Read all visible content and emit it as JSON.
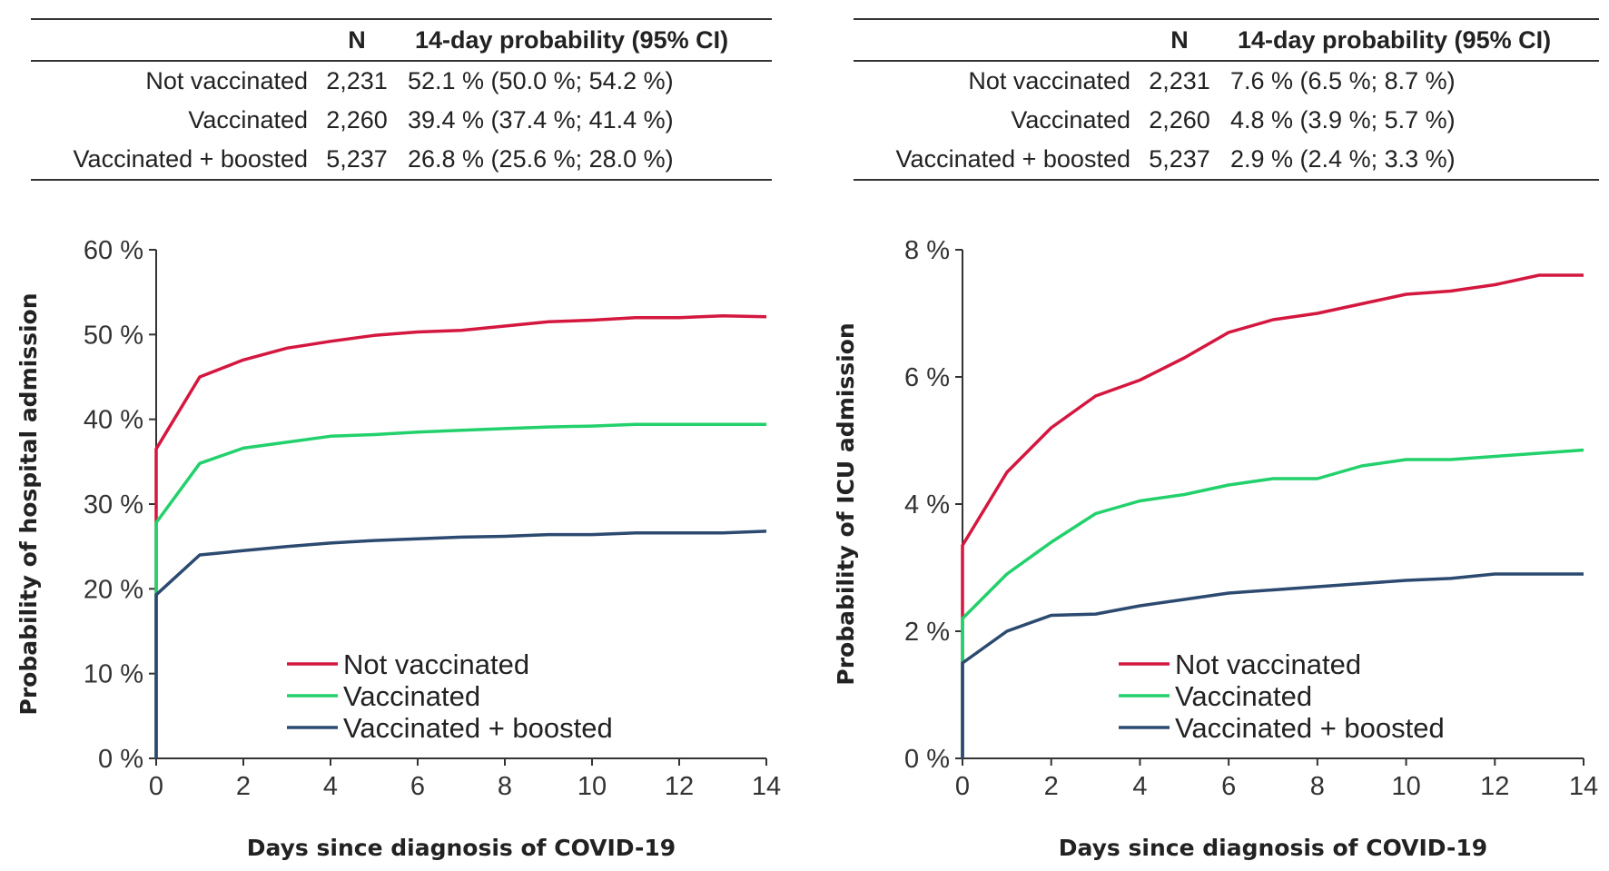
{
  "tables": [
    {
      "headers": [
        "",
        "N",
        "14-day probability (95% CI)"
      ],
      "rows": [
        [
          "Not vaccinated",
          "2,231",
          "52.1 % (50.0 %; 54.2 %)"
        ],
        [
          "Vaccinated",
          "2,260",
          "39.4 % (37.4 %; 41.4 %)"
        ],
        [
          "Vaccinated + boosted",
          "5,237",
          "26.8 % (25.6 %; 28.0 %)"
        ]
      ]
    },
    {
      "headers": [
        "",
        "N",
        "14-day probability (95% CI)"
      ],
      "rows": [
        [
          "Not vaccinated",
          "2,231",
          "7.6 % (6.5 %; 8.7 %)"
        ],
        [
          "Vaccinated",
          "2,260",
          "4.8 % (3.9 %; 5.7 %)"
        ],
        [
          "Vaccinated + boosted",
          "5,237",
          "2.9 % (2.4 %; 3.3 %)"
        ]
      ]
    }
  ],
  "chart_data": [
    {
      "type": "line",
      "xlabel": "Days since diagnosis of COVID-19",
      "ylabel": "Probability of hospital admission",
      "xlim": [
        0,
        14
      ],
      "ylim": [
        0,
        60
      ],
      "xticks": [
        0,
        2,
        4,
        6,
        8,
        10,
        12,
        14
      ],
      "yticks": [
        0,
        10,
        20,
        30,
        40,
        50,
        60
      ],
      "ytick_labels": [
        "0 %",
        "10 %",
        "20 %",
        "30 %",
        "40 %",
        "50 %",
        "60 %"
      ],
      "legend_placement": "bottom-center",
      "x": [
        0,
        1,
        2,
        3,
        4,
        5,
        6,
        7,
        8,
        9,
        10,
        11,
        12,
        13,
        14
      ],
      "series": [
        {
          "name": "Not vaccinated",
          "color": "#d4173f",
          "values": [
            36.5,
            45,
            47,
            48.4,
            49.2,
            49.9,
            50.3,
            50.5,
            51,
            51.5,
            51.7,
            52,
            52,
            52.2,
            52.1
          ]
        },
        {
          "name": "Vaccinated",
          "color": "#22d16c",
          "values": [
            27.8,
            34.8,
            36.6,
            37.3,
            38,
            38.2,
            38.5,
            38.7,
            38.9,
            39.1,
            39.2,
            39.4,
            39.4,
            39.4,
            39.4
          ]
        },
        {
          "name": "Vaccinated + boosted",
          "color": "#2c4a70",
          "values": [
            19.3,
            24,
            24.5,
            25,
            25.4,
            25.7,
            25.9,
            26.1,
            26.2,
            26.4,
            26.4,
            26.6,
            26.6,
            26.6,
            26.8
          ]
        }
      ]
    },
    {
      "type": "line",
      "xlabel": "Days since diagnosis of COVID-19",
      "ylabel": "Probability of ICU admission",
      "xlim": [
        0,
        14
      ],
      "ylim": [
        0,
        8
      ],
      "xticks": [
        0,
        2,
        4,
        6,
        8,
        10,
        12,
        14
      ],
      "yticks": [
        0,
        2,
        4,
        6,
        8
      ],
      "ytick_labels": [
        "0 %",
        "2 %",
        "4 %",
        "6 %",
        "8 %"
      ],
      "legend_placement": "bottom-center",
      "x": [
        0,
        1,
        2,
        3,
        4,
        5,
        6,
        7,
        8,
        9,
        10,
        11,
        12,
        13,
        14
      ],
      "series": [
        {
          "name": "Not vaccinated",
          "color": "#d4173f",
          "values": [
            3.35,
            4.5,
            5.2,
            5.7,
            5.95,
            6.3,
            6.7,
            6.9,
            7.0,
            7.15,
            7.3,
            7.35,
            7.45,
            7.6,
            7.6
          ]
        },
        {
          "name": "Vaccinated",
          "color": "#22d16c",
          "values": [
            2.2,
            2.9,
            3.4,
            3.85,
            4.05,
            4.15,
            4.3,
            4.4,
            4.4,
            4.6,
            4.7,
            4.7,
            4.75,
            4.8,
            4.85
          ]
        },
        {
          "name": "Vaccinated + boosted",
          "color": "#2c4a70",
          "values": [
            1.5,
            2.0,
            2.25,
            2.27,
            2.4,
            2.5,
            2.6,
            2.65,
            2.7,
            2.75,
            2.8,
            2.83,
            2.9,
            2.9,
            2.9
          ]
        }
      ]
    }
  ]
}
